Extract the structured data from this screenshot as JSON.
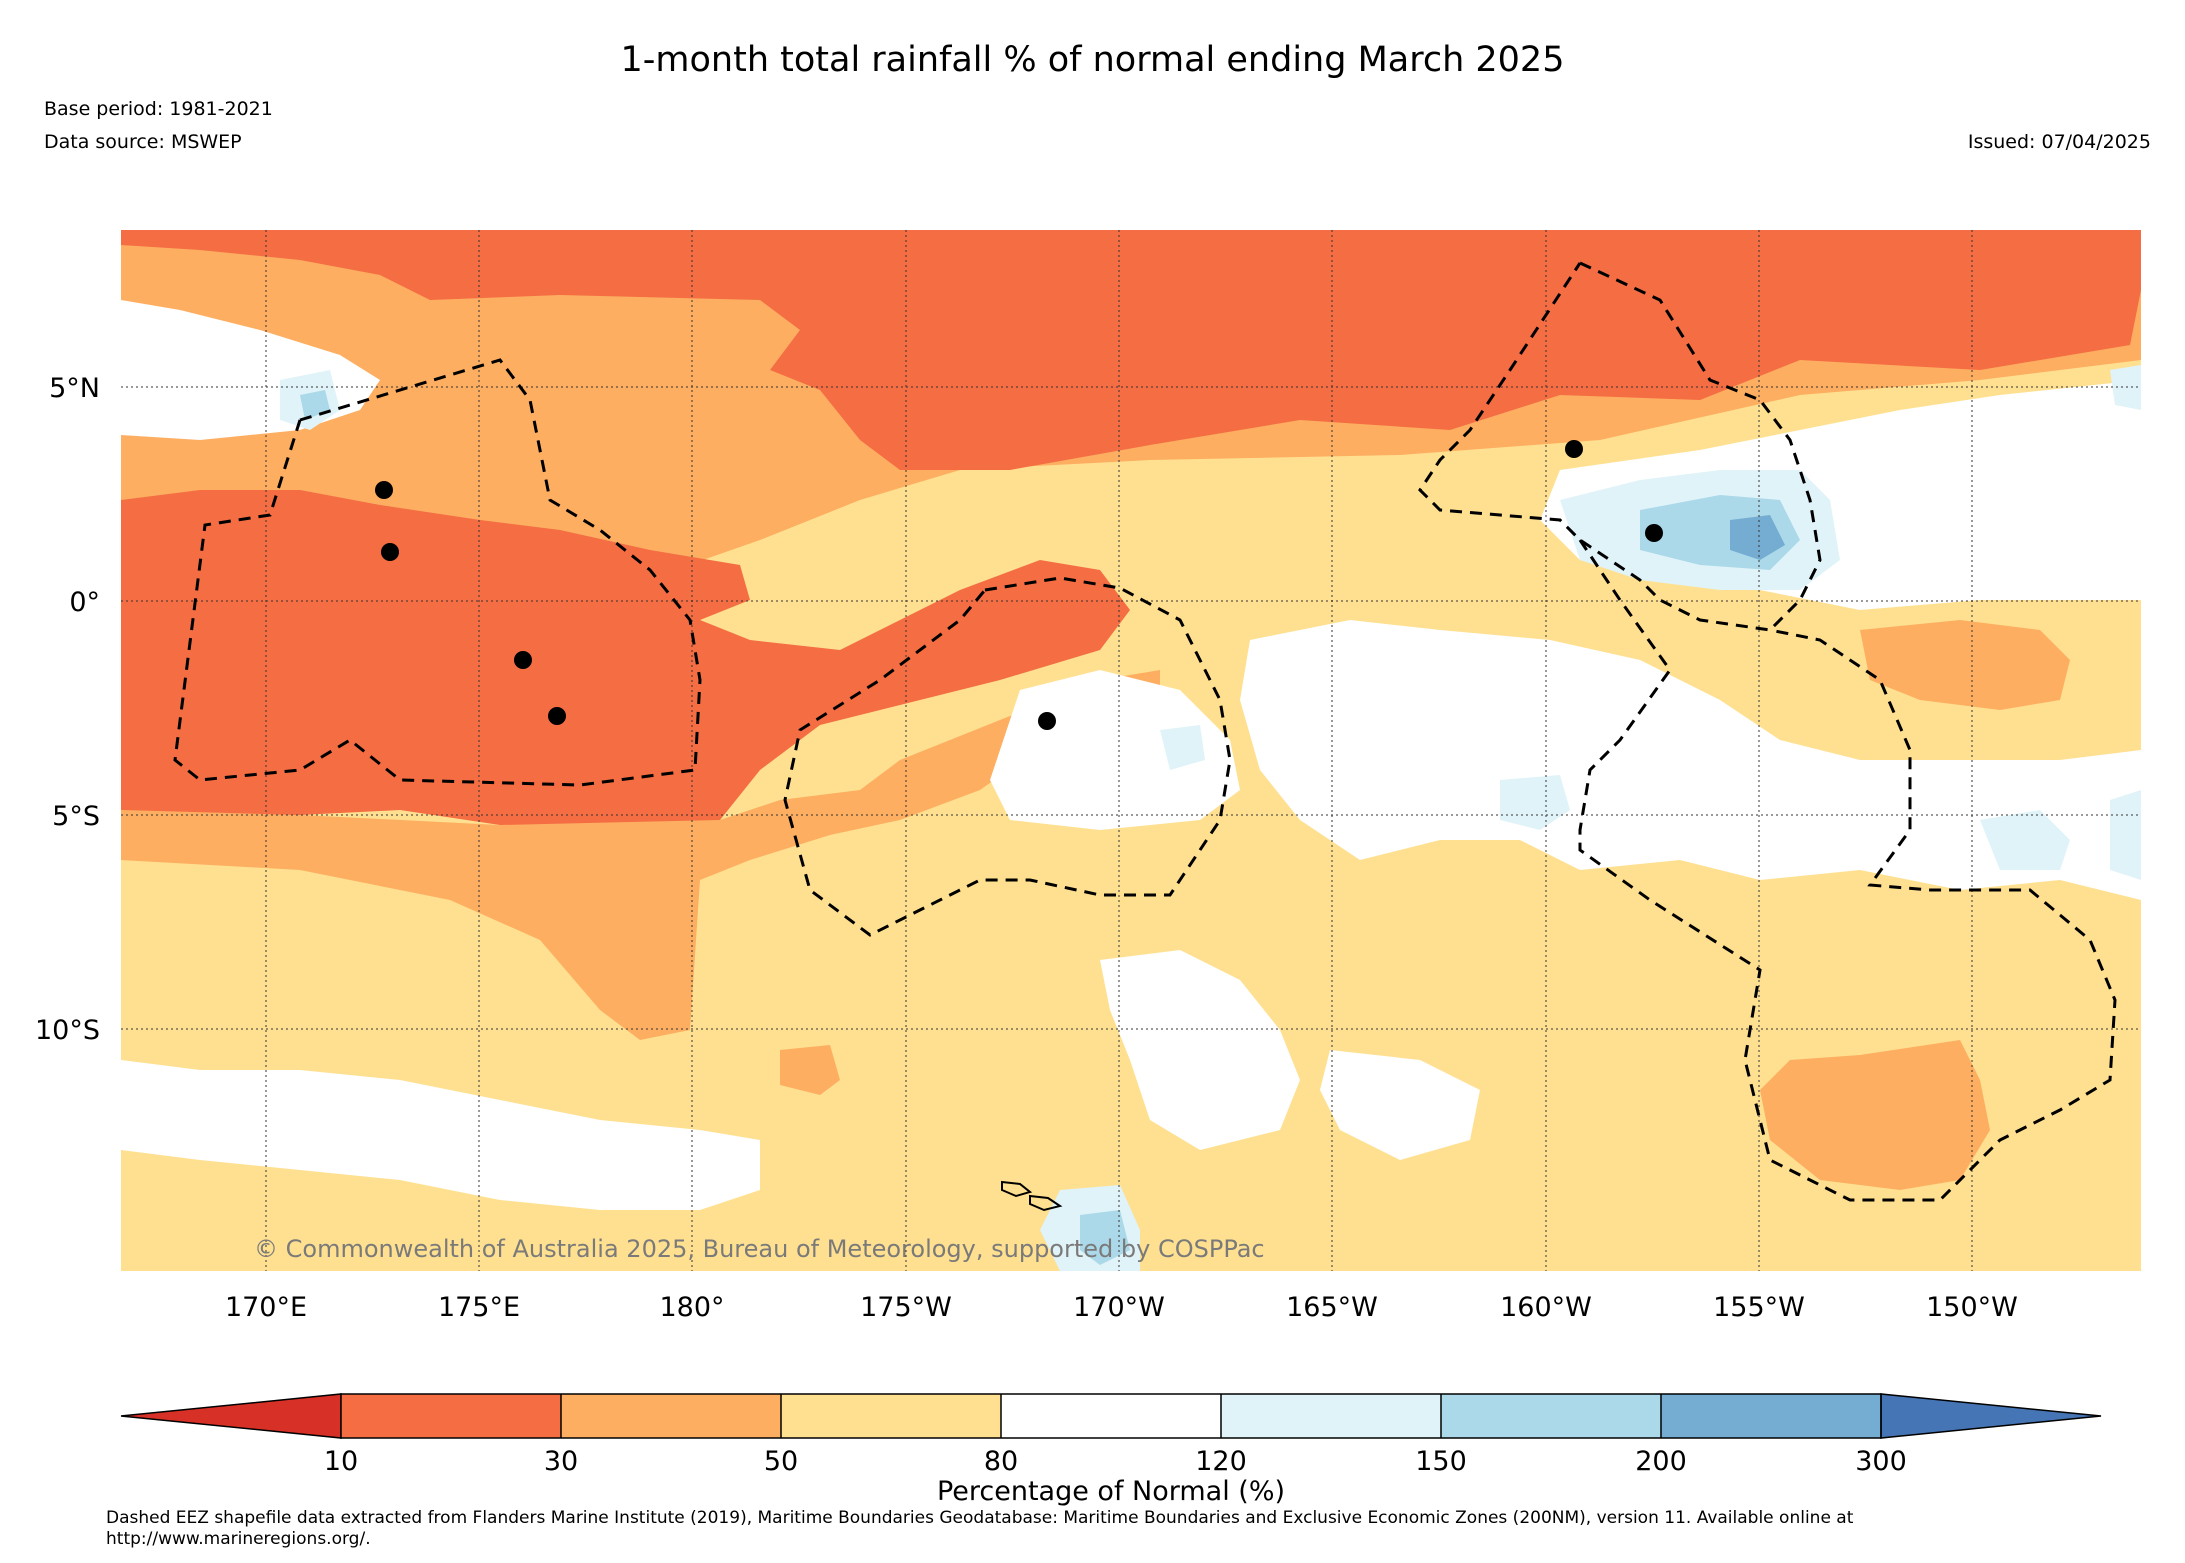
{
  "title": "1-month total rainfall % of normal ending March 2025",
  "base_period": "Base period: 1981-2021",
  "data_source": "Data source: MSWEP",
  "issued": "Issued: 07/04/2025",
  "copyright": "© Commonwealth of Australia 2025, Bureau of Meteorology, supported by COSPPac",
  "footnote_line1": "Dashed EEZ shapefile data extracted from Flanders Marine Institute (2019), Maritime Boundaries Geodatabase: Maritime Boundaries and Exclusive Economic Zones (200NM), version 11. Available online at",
  "footnote_line2": "http://www.marineregions.org/.",
  "map": {
    "lat_labels": [
      "5°N",
      "0°",
      "5°S",
      "10°S"
    ],
    "lon_labels": [
      "170°E",
      "175°E",
      "180°",
      "175°W",
      "170°W",
      "165°W",
      "160°W",
      "155°W",
      "150°W"
    ],
    "colors": {
      "lt10": "#d73027",
      "c10_30": "#f46d43",
      "c30_50": "#fdae61",
      "c50_80": "#fee090",
      "c80_120": "#ffffff",
      "c120_150": "#e0f3f8",
      "c150_200": "#abd9e9",
      "c200_300": "#74add1",
      "gt300": "#4575b4"
    }
  },
  "colorbar": {
    "ticks": [
      "10",
      "30",
      "50",
      "80",
      "120",
      "150",
      "200",
      "300"
    ],
    "label": "Percentage of Normal (%)",
    "bins": [
      {
        "range": "<10",
        "color": "#d73027"
      },
      {
        "range": "10-30",
        "color": "#f46d43"
      },
      {
        "range": "30-50",
        "color": "#fdae61"
      },
      {
        "range": "50-80",
        "color": "#fee090"
      },
      {
        "range": "80-120",
        "color": "#ffffff"
      },
      {
        "range": "120-150",
        "color": "#e0f3f8"
      },
      {
        "range": "150-200",
        "color": "#abd9e9"
      },
      {
        "range": "200-300",
        "color": "#74add1"
      },
      {
        "range": ">300",
        "color": "#4575b4"
      }
    ]
  }
}
